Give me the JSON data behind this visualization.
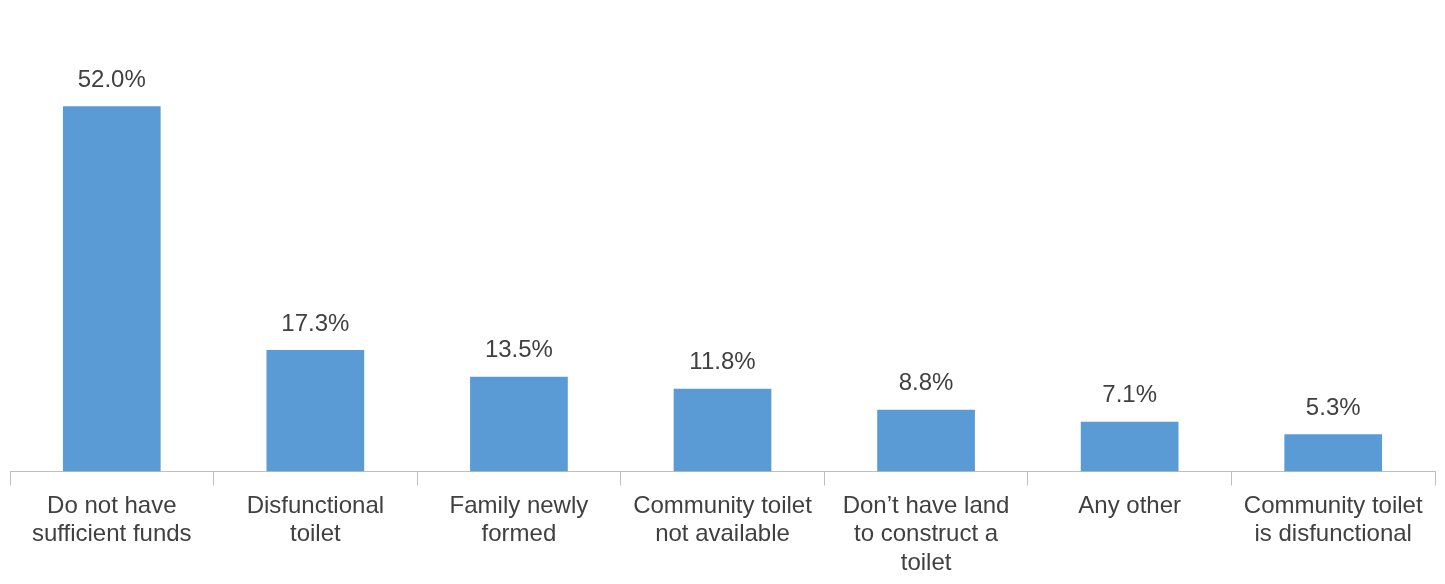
{
  "chart_data": {
    "type": "bar",
    "categories": [
      "Do not have sufficient funds",
      "Disfunctional toilet",
      "Family newly formed",
      "Community toilet not available",
      "Don’t have land to construct a toilet",
      "Any other",
      "Community toilet is disfunctional"
    ],
    "values": [
      52.0,
      17.3,
      13.5,
      11.8,
      8.8,
      7.1,
      5.3
    ],
    "value_labels": [
      "52.0%",
      "17.3%",
      "13.5%",
      "11.8%",
      "8.8%",
      "7.1%",
      "5.3%"
    ],
    "color": "#5b9bd5",
    "grid": false,
    "legend": false
  }
}
